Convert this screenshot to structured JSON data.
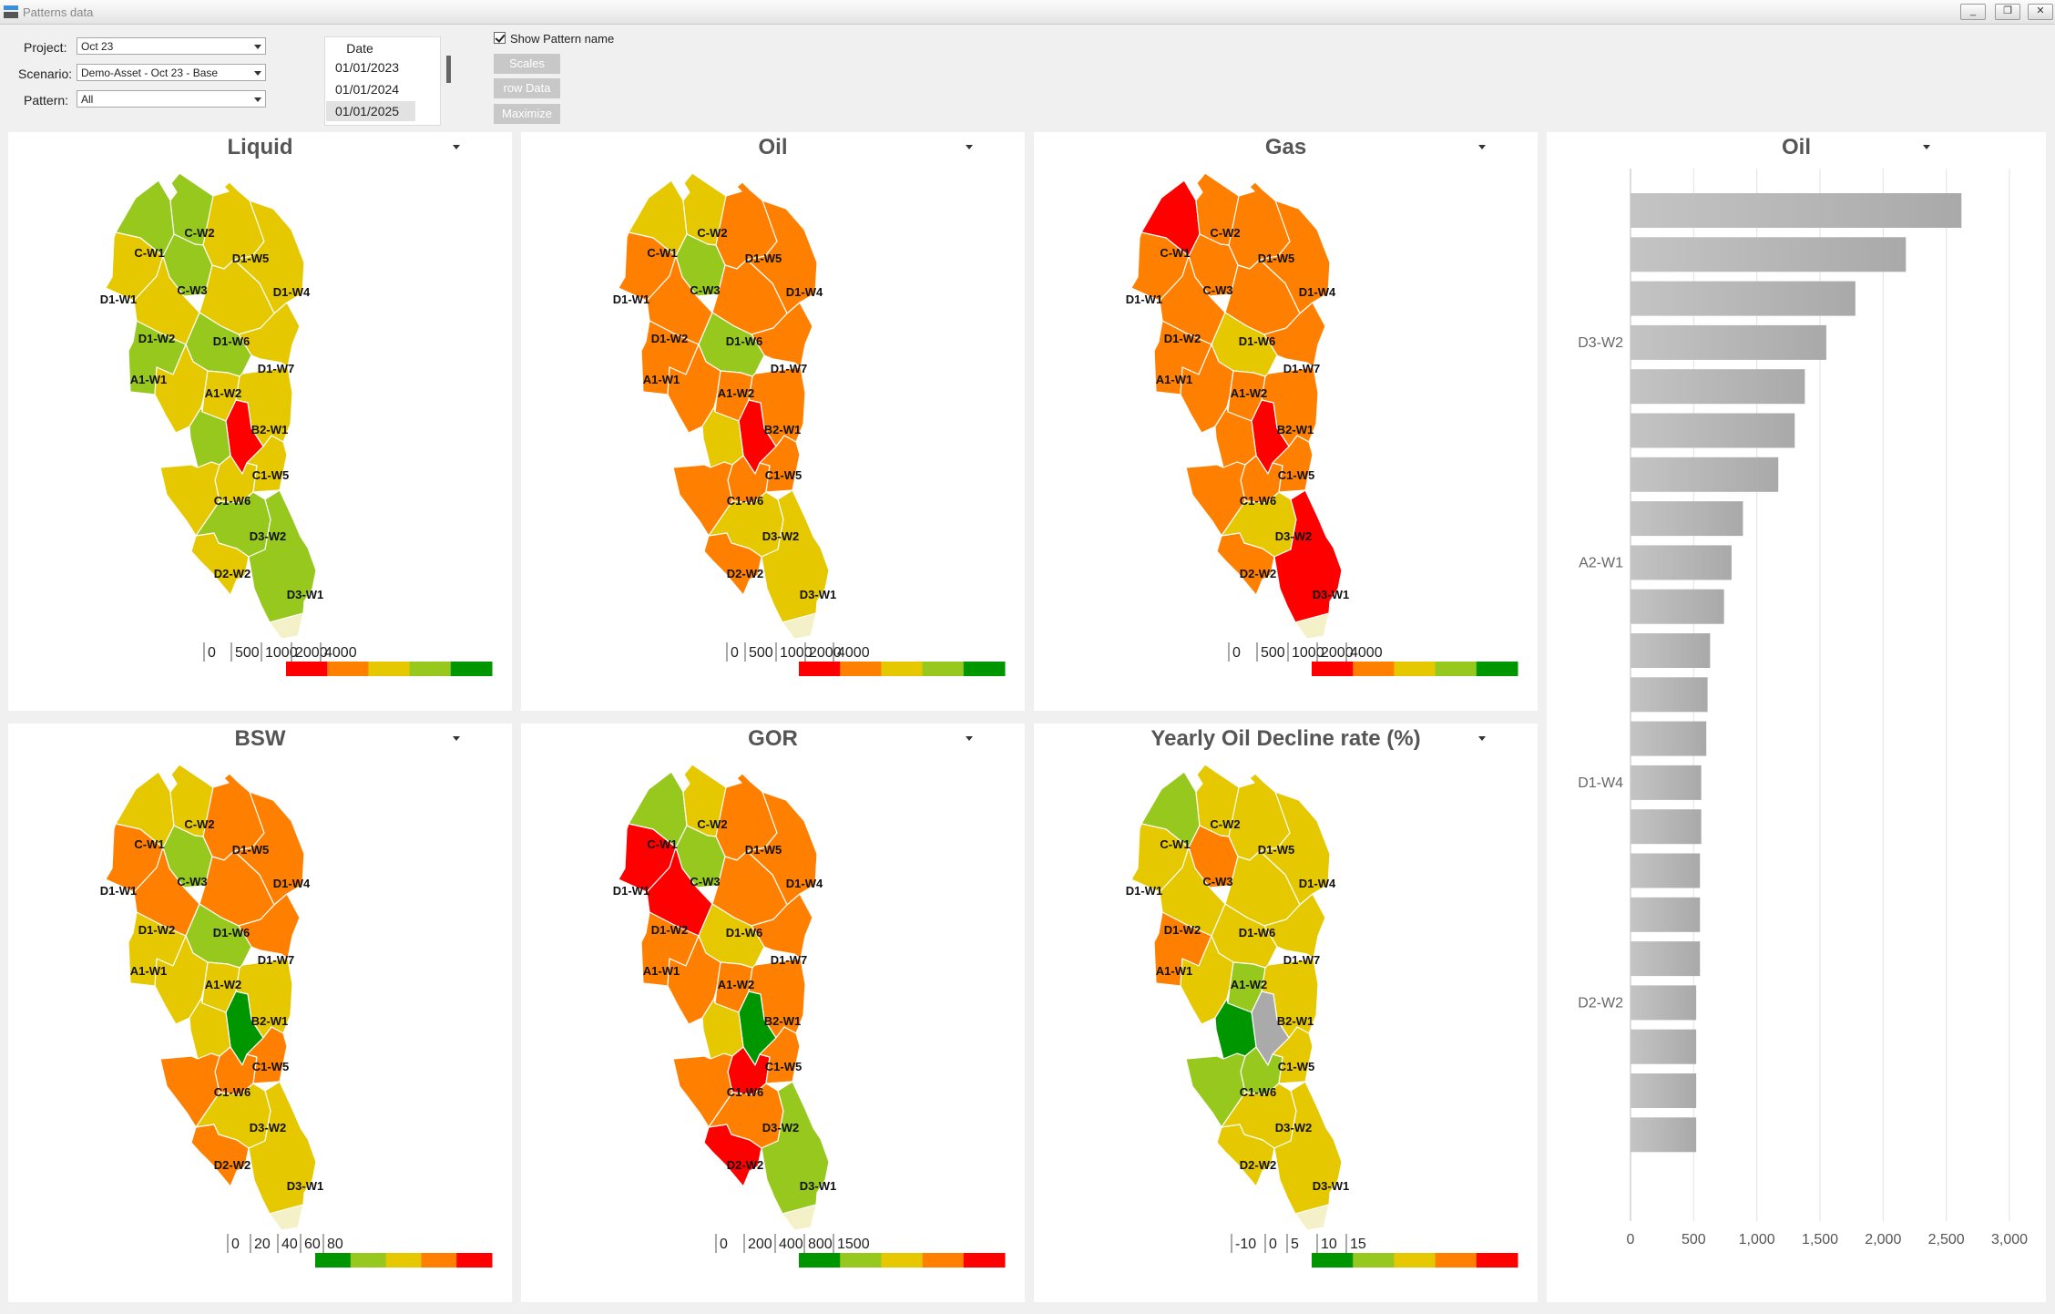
{
  "window": {
    "title": "Patterns data",
    "minimize": "_",
    "restore": "❐",
    "close": "✕"
  },
  "controls": {
    "project_label": "Project:",
    "project_value": "Oct 23",
    "scenario_label": "Scenario:",
    "scenario_value": "Demo-Asset - Oct 23 - Base",
    "pattern_label": "Pattern:",
    "pattern_value": "All",
    "date_header": "Date",
    "dates": [
      "01/01/2023",
      "01/01/2024",
      "01/01/2025"
    ],
    "show_pattern_name": "Show Pattern name",
    "buttons": [
      "Scales",
      "row Data",
      "Maximize"
    ]
  },
  "map_panels": [
    {
      "title": "Liquid",
      "legend": {
        "ticks": [
          "0",
          "500",
          "1000",
          "2000",
          "4000"
        ],
        "colors": [
          "#ff0000",
          "#ff8000",
          "#e6c800",
          "#96c81e",
          "#009600"
        ]
      },
      "fills": {
        "C-W1": "#96c81e",
        "C-W2": "#96c81e",
        "D1-W5": "#e6c800",
        "D1-W4": "#e6c800",
        "D1-W1": "#e6c800",
        "C-W3": "#96c81e",
        "D1-W2": "#e6c800",
        "D1-W6": "#e6c800",
        "D1-W7": "#e6c800",
        "A1-W1": "#96c81e",
        "A1-W2": "#96c81e",
        "X1": "#e6c800",
        "X2": "#e6c800",
        "B2-W1": "#e6c800",
        "X3": "#ff0000",
        "X4": "#96c81e",
        "X5": "#e6c800",
        "C1-W5": "#e6c800",
        "C1-W6": "#e6c800",
        "D3-W2": "#96c81e",
        "D2-W2": "#e6c800",
        "D3-W1": "#96c81e"
      }
    },
    {
      "title": "Oil",
      "legend": {
        "ticks": [
          "0",
          "500",
          "1000",
          "2000",
          "4000"
        ],
        "colors": [
          "#ff0000",
          "#ff8000",
          "#e6c800",
          "#96c81e",
          "#009600"
        ]
      },
      "fills": {
        "C-W1": "#e6c800",
        "C-W2": "#e6c800",
        "D1-W5": "#ff8000",
        "D1-W4": "#ff8000",
        "D1-W1": "#ff8000",
        "C-W3": "#96c81e",
        "D1-W2": "#ff8000",
        "D1-W6": "#ff8000",
        "D1-W7": "#ff8000",
        "A1-W1": "#ff8000",
        "A1-W2": "#96c81e",
        "X1": "#ff8000",
        "X2": "#ff8000",
        "B2-W1": "#ff8000",
        "X3": "#ff0000",
        "X4": "#e6c800",
        "X5": "#ff8000",
        "C1-W5": "#ff8000",
        "C1-W6": "#ff8000",
        "D3-W2": "#e6c800",
        "D2-W2": "#ff8000",
        "D3-W1": "#e6c800"
      }
    },
    {
      "title": "Gas",
      "legend": {
        "ticks": [
          "0",
          "500",
          "1000",
          "2000",
          "4000"
        ],
        "colors": [
          "#ff0000",
          "#ff8000",
          "#e6c800",
          "#96c81e",
          "#009600"
        ]
      },
      "fills": {
        "C-W1": "#ff0000",
        "C-W2": "#ff8000",
        "D1-W5": "#ff8000",
        "D1-W4": "#ff8000",
        "D1-W1": "#ff8000",
        "C-W3": "#ff8000",
        "D1-W2": "#ff8000",
        "D1-W6": "#ff8000",
        "D1-W7": "#ff8000",
        "A1-W1": "#ff8000",
        "A1-W2": "#e6c800",
        "X1": "#ff8000",
        "X2": "#ff8000",
        "B2-W1": "#ff8000",
        "X3": "#ff0000",
        "X4": "#ff8000",
        "X5": "#ff8000",
        "C1-W5": "#ff8000",
        "C1-W6": "#ff8000",
        "D3-W2": "#e6c800",
        "D2-W2": "#ff8000",
        "D3-W1": "#ff0000"
      }
    },
    {
      "title": "BSW",
      "legend": {
        "ticks": [
          "0",
          "20",
          "40",
          "60",
          "80"
        ],
        "colors": [
          "#009600",
          "#96c81e",
          "#e6c800",
          "#ff8000",
          "#ff0000"
        ]
      },
      "fills": {
        "C-W1": "#e6c800",
        "C-W2": "#e6c800",
        "D1-W5": "#ff8000",
        "D1-W4": "#ff8000",
        "D1-W1": "#ff8000",
        "C-W3": "#96c81e",
        "D1-W2": "#ff8000",
        "D1-W6": "#ff8000",
        "D1-W7": "#ff8000",
        "A1-W1": "#e6c800",
        "A1-W2": "#96c81e",
        "X1": "#e6c800",
        "X2": "#e6c800",
        "B2-W1": "#e6c800",
        "X3": "#009600",
        "X4": "#e6c800",
        "X5": "#ff8000",
        "C1-W5": "#ff8000",
        "C1-W6": "#ff8000",
        "D3-W2": "#e6c800",
        "D2-W2": "#ff8000",
        "D3-W1": "#e6c800"
      }
    },
    {
      "title": "GOR",
      "legend": {
        "ticks": [
          "0",
          "200",
          "400",
          "800",
          "1500"
        ],
        "colors": [
          "#009600",
          "#96c81e",
          "#e6c800",
          "#ff8000",
          "#ff0000"
        ]
      },
      "fills": {
        "C-W1": "#96c81e",
        "C-W2": "#e6c800",
        "D1-W5": "#ff8000",
        "D1-W4": "#ff8000",
        "D1-W1": "#ff0000",
        "C-W3": "#96c81e",
        "D1-W2": "#ff0000",
        "D1-W6": "#ff8000",
        "D1-W7": "#ff8000",
        "A1-W1": "#ff8000",
        "A1-W2": "#e6c800",
        "X1": "#ff8000",
        "X2": "#ff8000",
        "B2-W1": "#ff8000",
        "X3": "#009600",
        "X4": "#e6c800",
        "X5": "#ff0000",
        "C1-W5": "#ff8000",
        "C1-W6": "#ff8000",
        "D3-W2": "#ff8000",
        "D2-W2": "#ff0000",
        "D3-W1": "#96c81e"
      }
    },
    {
      "title": "Yearly Oil Decline rate (%)",
      "legend": {
        "ticks": [
          "-10",
          "0",
          "5",
          "10",
          "15"
        ],
        "colors": [
          "#009600",
          "#96c81e",
          "#e6c800",
          "#ff8000",
          "#ff0000"
        ]
      },
      "fills": {
        "C-W1": "#96c81e",
        "C-W2": "#e6c800",
        "D1-W5": "#e6c800",
        "D1-W4": "#e6c800",
        "D1-W1": "#e6c800",
        "C-W3": "#ff8000",
        "D1-W2": "#e6c800",
        "D1-W6": "#e6c800",
        "D1-W7": "#e6c800",
        "A1-W1": "#ff8000",
        "A1-W2": "#e6c800",
        "X1": "#e6c800",
        "X2": "#96c81e",
        "B2-W1": "#e6c800",
        "X3": "#aaaaaa",
        "X4": "#009600",
        "X5": "#96c81e",
        "C1-W5": "#e6c800",
        "C1-W6": "#96c81e",
        "D3-W2": "#e6c800",
        "D2-W2": "#e6c800",
        "D3-W1": "#e6c800"
      }
    }
  ],
  "pattern_labels": [
    "C-W1",
    "C-W2",
    "D1-W5",
    "D1-W4",
    "D1-W1",
    "C-W3",
    "D1-W2",
    "D1-W6",
    "D1-W7",
    "A1-W1",
    "A1-W2",
    "B2-W1",
    "C1-W5",
    "C1-W6",
    "D3-W2",
    "D2-W2",
    "D3-W1"
  ],
  "chart_data": {
    "type": "bar",
    "orientation": "horizontal",
    "title": "Oil",
    "xlim": [
      0,
      3000
    ],
    "x_ticks": [
      "0",
      "500",
      "1,000",
      "1,500",
      "2,000",
      "2,500",
      "3,000"
    ],
    "category_labels_shown": [
      {
        "label": "D3-W2",
        "index": 3
      },
      {
        "label": "A2-W1",
        "index": 8
      },
      {
        "label": "D1-W4",
        "index": 13
      },
      {
        "label": "D2-W2",
        "index": 18
      }
    ],
    "values": [
      2620,
      2180,
      1780,
      1550,
      1380,
      1300,
      1170,
      890,
      800,
      740,
      630,
      610,
      600,
      560,
      560,
      550,
      550,
      550,
      520,
      520,
      520,
      520
    ],
    "bar_color": "#bdbdbd",
    "grid": true
  }
}
